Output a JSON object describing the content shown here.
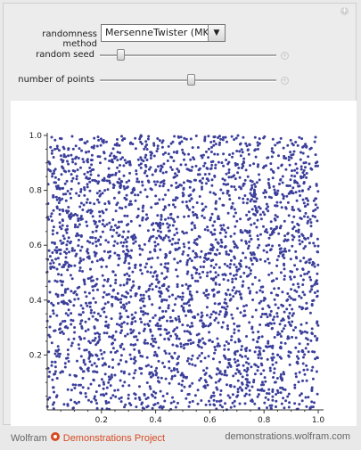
{
  "controls": {
    "randomness_method": {
      "label": "randomness method",
      "selected": "MersenneTwister (MKL)",
      "arrow": "▼"
    },
    "random_seed": {
      "label": "random seed",
      "value_fraction": 0.1
    },
    "number_of_points": {
      "label": "number of points",
      "value_fraction": 0.52
    },
    "plus_glyph": "+"
  },
  "chart_data": {
    "type": "scatter",
    "point_count": 3000,
    "xlim": [
      0,
      1
    ],
    "ylim": [
      0,
      1
    ],
    "x_ticks": [
      "0.2",
      "0.4",
      "0.6",
      "0.8",
      "1.0"
    ],
    "y_ticks": [
      "0.2",
      "0.4",
      "0.6",
      "0.8",
      "1.0"
    ],
    "point_color": "#3b3f9a",
    "distribution": "uniform"
  },
  "footer": {
    "brand_left": "Wolfram",
    "brand_right": "Demonstrations Project",
    "site": "demonstrations.wolfram.com"
  },
  "colors": {
    "accent": "#d64b22",
    "points": "#3b3f9a"
  }
}
